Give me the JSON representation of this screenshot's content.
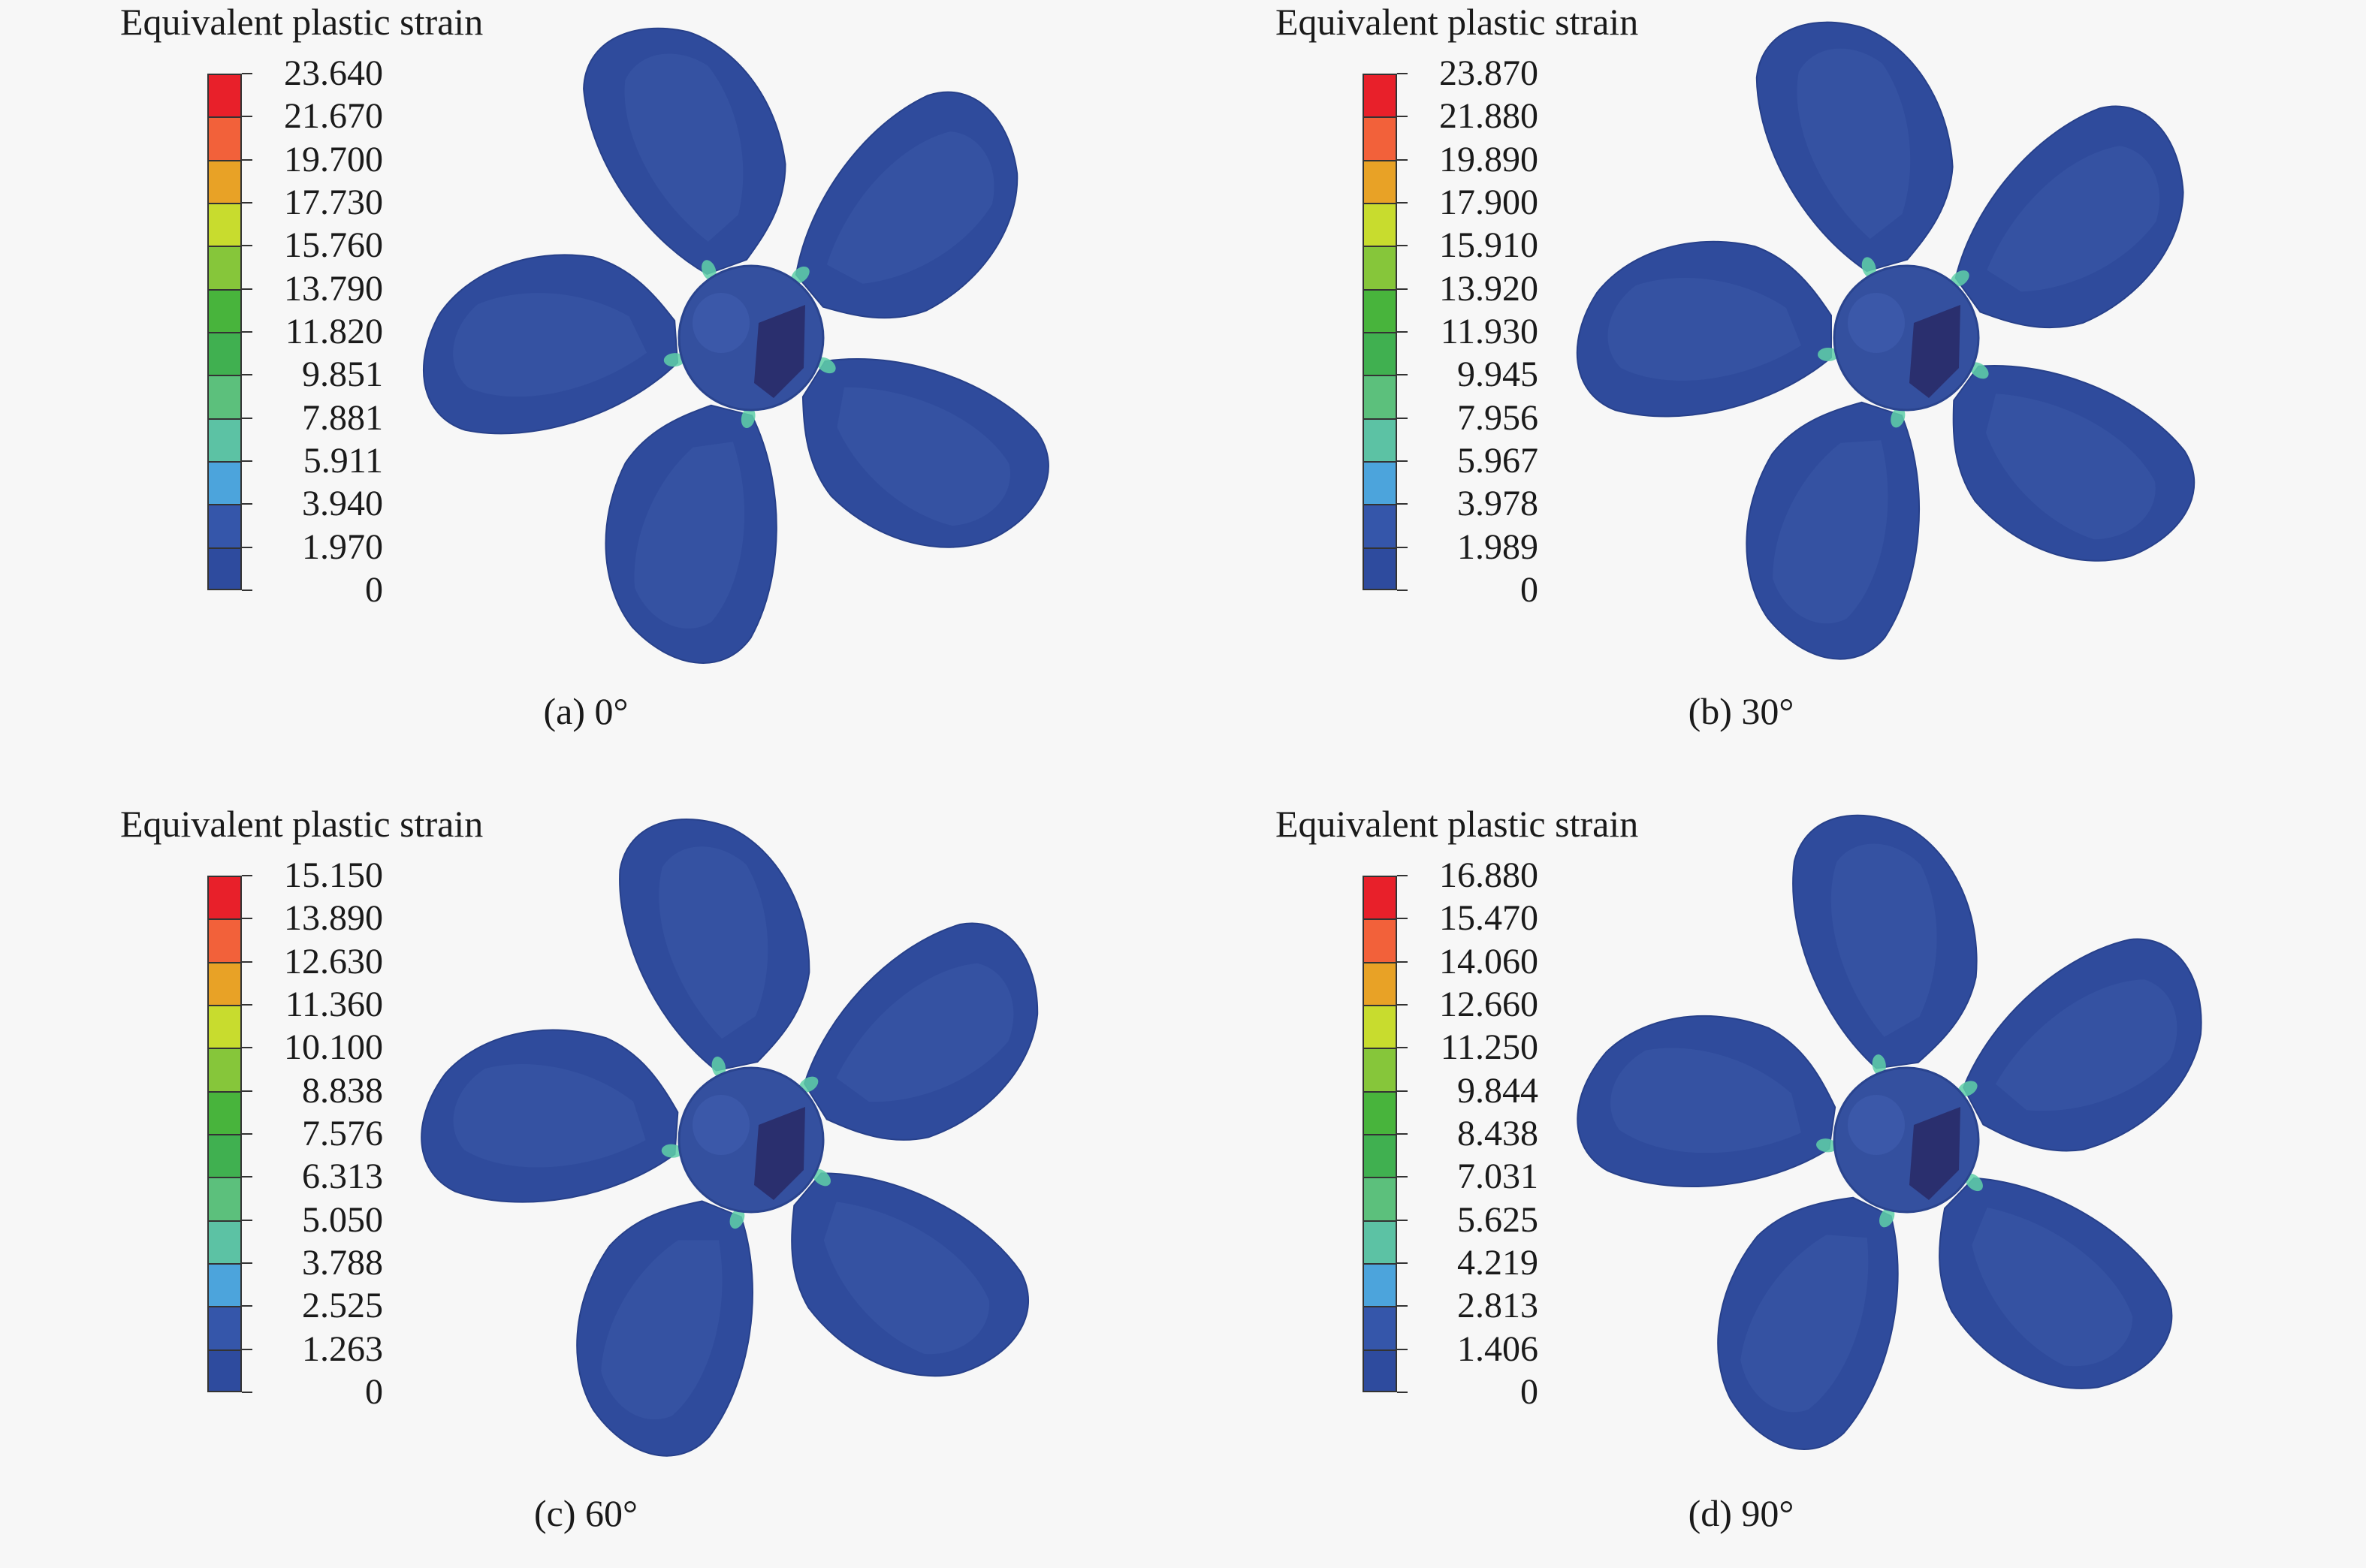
{
  "panels": [
    {
      "legend_title": "Equivalent plastic strain",
      "ticks": [
        "23.640",
        "21.670",
        "19.700",
        "17.730",
        "15.760",
        "13.790",
        "11.820",
        "9.851",
        "7.881",
        "5.911",
        "3.940",
        "1.970",
        "0"
      ],
      "caption": "(a) 0°"
    },
    {
      "legend_title": "Equivalent plastic strain",
      "ticks": [
        "23.870",
        "21.880",
        "19.890",
        "17.900",
        "15.910",
        "13.920",
        "11.930",
        "9.945",
        "7.956",
        "5.967",
        "3.978",
        "1.989",
        "0"
      ],
      "caption": "(b) 30°"
    },
    {
      "legend_title": "Equivalent plastic strain",
      "ticks": [
        "15.150",
        "13.890",
        "12.630",
        "11.360",
        "10.100",
        "8.838",
        "7.576",
        "6.313",
        "5.050",
        "3.788",
        "2.525",
        "1.263",
        "0"
      ],
      "caption": "(c) 60°"
    },
    {
      "legend_title": "Equivalent plastic strain",
      "ticks": [
        "16.880",
        "15.470",
        "14.060",
        "12.660",
        "11.250",
        "9.844",
        "8.438",
        "7.031",
        "5.625",
        "4.219",
        "2.813",
        "1.406",
        "0"
      ],
      "caption": "(d) 90°"
    }
  ],
  "colors": {
    "scale": [
      "#e8202a",
      "#f2613a",
      "#e8a226",
      "#c8dc2e",
      "#86c63a",
      "#48b43c",
      "#40b050",
      "#5cc07c",
      "#5cc2a4",
      "#4ca4dc",
      "#3556aa",
      "#2e4b9e"
    ],
    "blade_base": "#2f4b9c",
    "blade_light": "#3a59a8",
    "hub_dark": "#2a2f6e",
    "stress_highlight": "#5fd0a8"
  }
}
